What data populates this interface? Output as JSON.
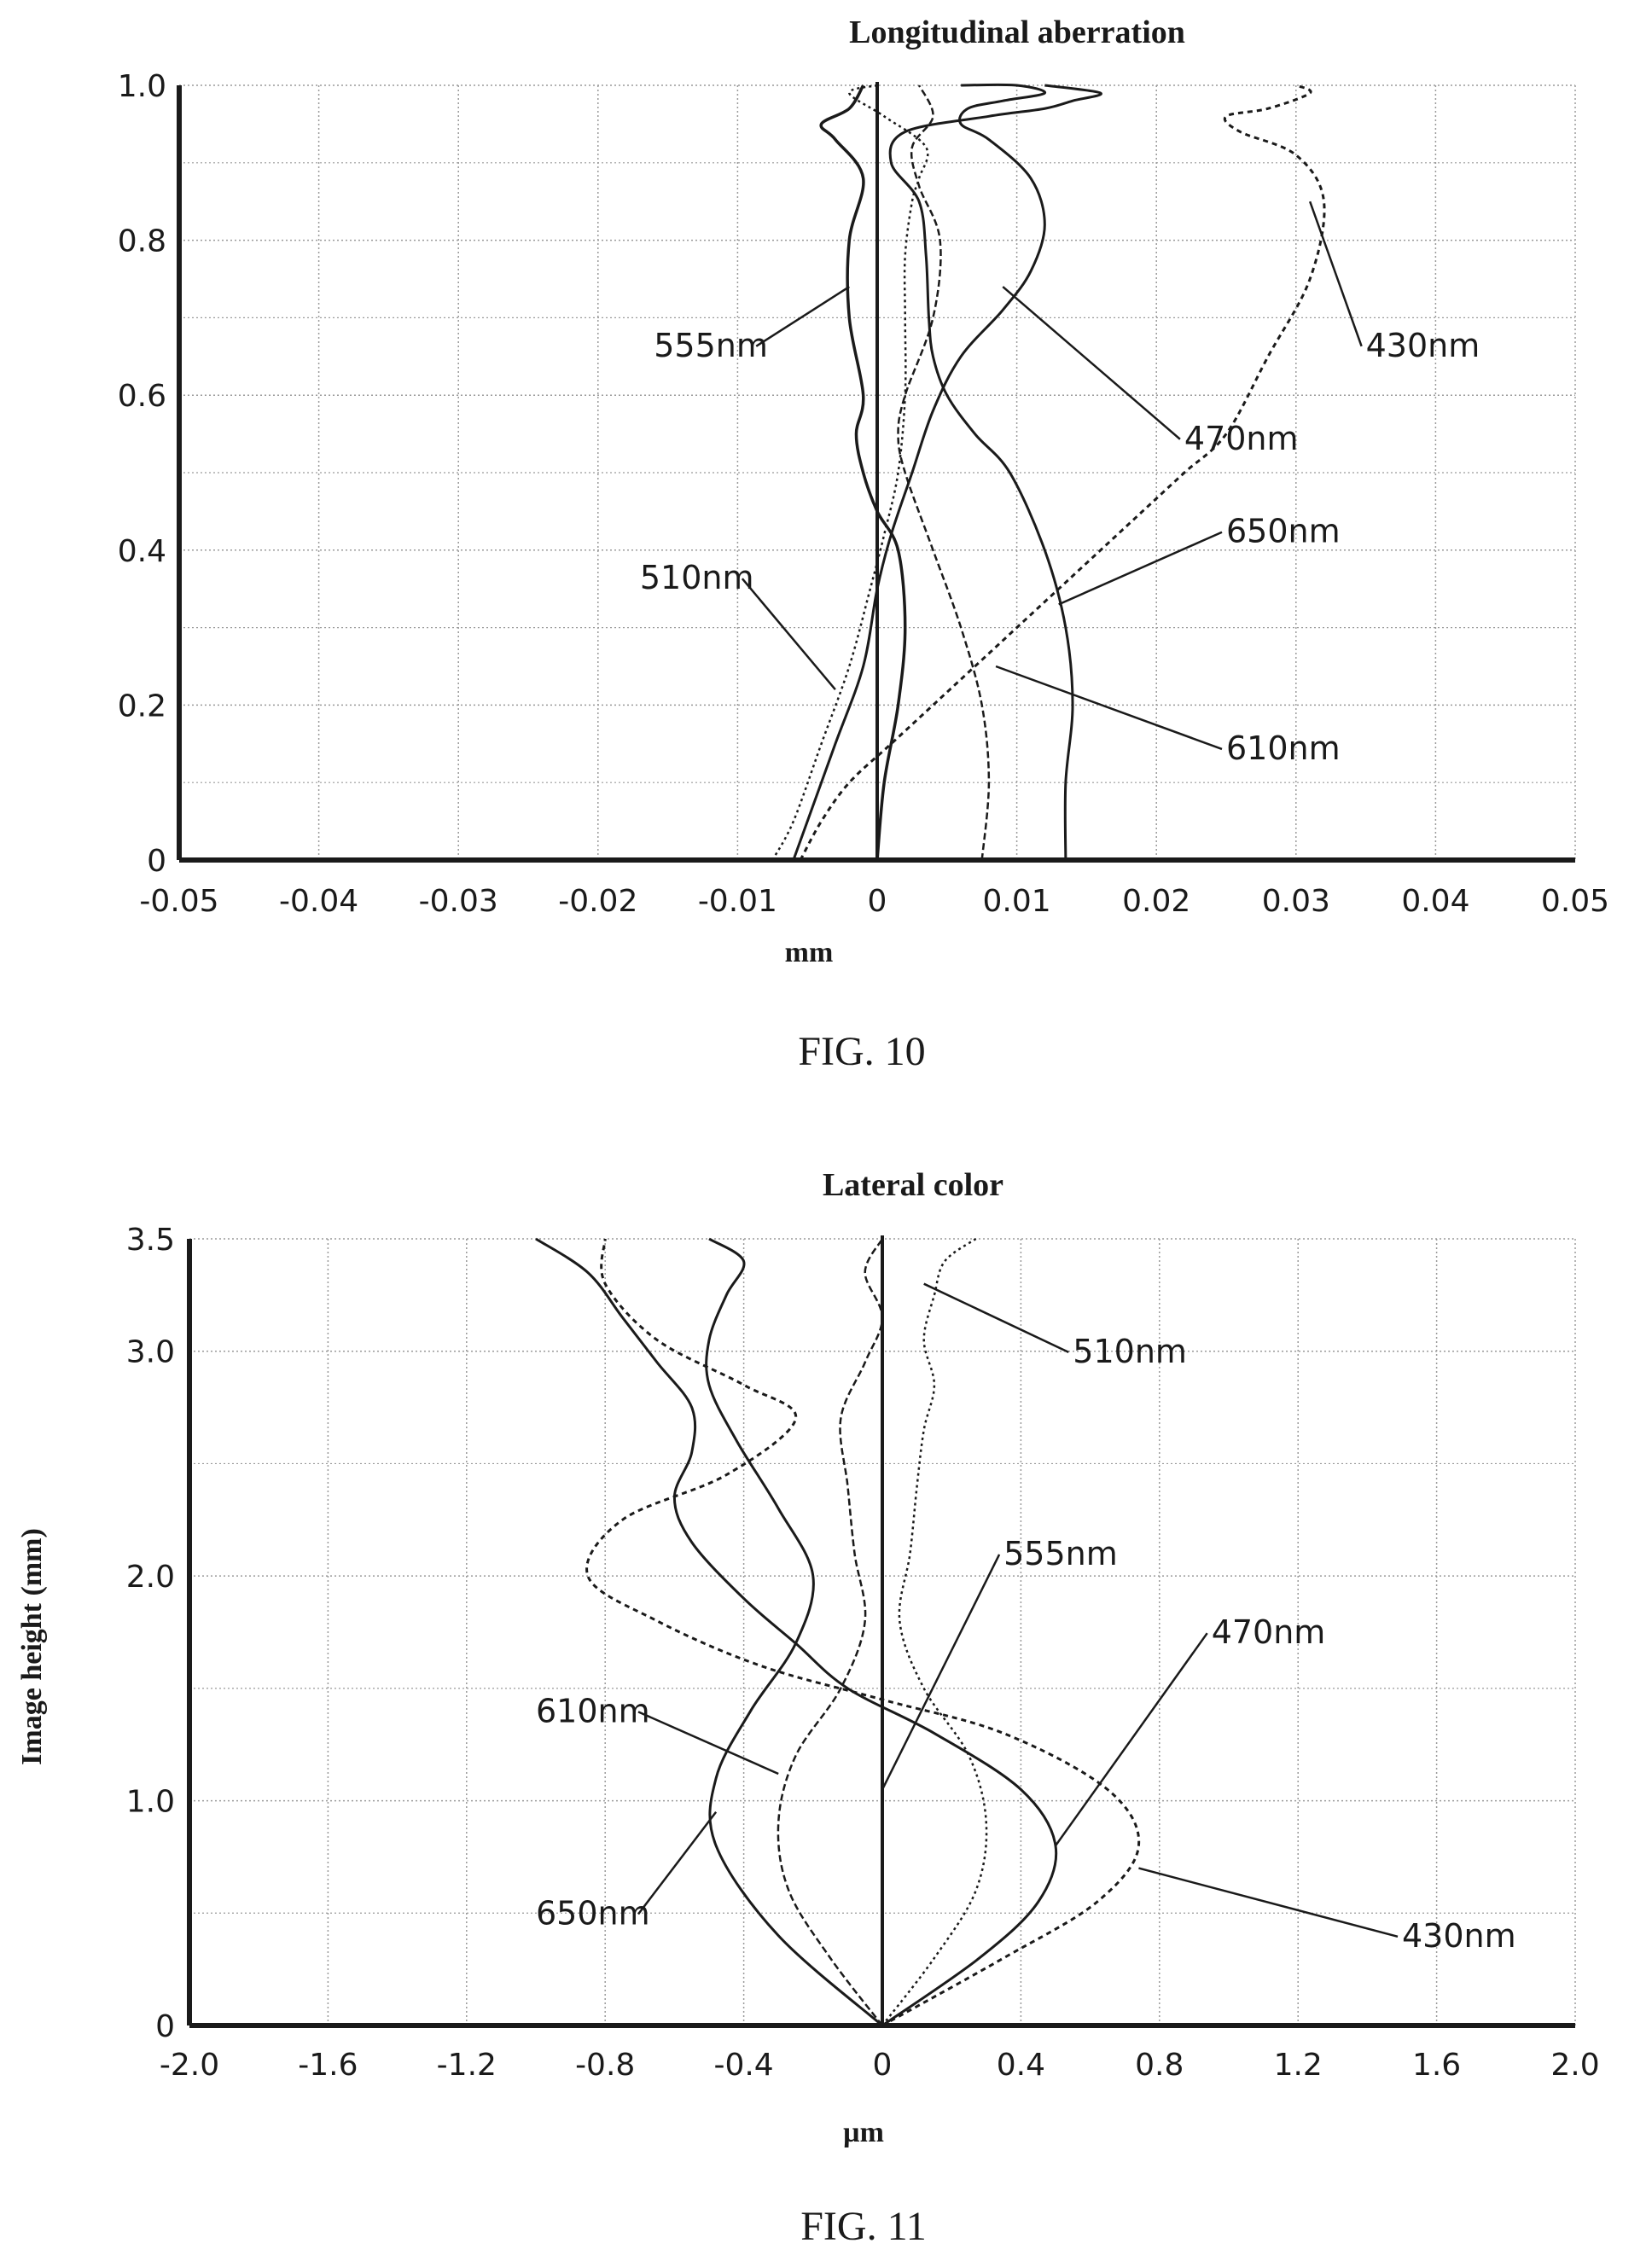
{
  "colors": {
    "ink": "#1a1a1a",
    "grid": "#9a9a9a",
    "background": "#ffffff"
  },
  "chart_data": [
    {
      "type": "line",
      "title": "Longitudinal aberration",
      "xlabel": "mm",
      "ylabel": "",
      "xlim": [
        -0.05,
        0.05
      ],
      "ylim": [
        0,
        1.0
      ],
      "xticks": [
        "-0.05",
        "-0.04",
        "-0.03",
        "-0.02",
        "-0.01",
        "0",
        "0.01",
        "0.02",
        "0.03",
        "0.04",
        "0.05"
      ],
      "yticks": [
        "0",
        "0.2",
        "0.4",
        "0.6",
        "0.8",
        "1.0"
      ],
      "grid": true,
      "caption": "FIG. 10",
      "series": [
        {
          "name": "430nm",
          "x": [
            -0.0055,
            -0.004,
            -0.002,
            0.001,
            0.004,
            0.007,
            0.01,
            0.013,
            0.016,
            0.019,
            0.022,
            0.025,
            0.028,
            0.031,
            0.032,
            0.03,
            0.026,
            0.025,
            0.028,
            0.031,
            0.03
          ],
          "y": [
            0,
            0.05,
            0.1,
            0.15,
            0.2,
            0.25,
            0.3,
            0.35,
            0.4,
            0.45,
            0.5,
            0.55,
            0.65,
            0.75,
            0.85,
            0.91,
            0.94,
            0.96,
            0.97,
            0.99,
            1.0
          ]
        },
        {
          "name": "470nm",
          "x": [
            -0.006,
            -0.005,
            -0.003,
            -0.001,
            0.0,
            0.001,
            0.0025,
            0.004,
            0.006,
            0.009,
            0.011,
            0.012,
            0.011,
            0.008,
            0.006,
            0.0065,
            0.009,
            0.012,
            0.01,
            0.006
          ],
          "y": [
            0,
            0.05,
            0.15,
            0.25,
            0.35,
            0.42,
            0.5,
            0.58,
            0.65,
            0.71,
            0.76,
            0.82,
            0.88,
            0.93,
            0.95,
            0.97,
            0.98,
            0.99,
            1.0,
            1.0
          ]
        },
        {
          "name": "510nm",
          "x": [
            -0.0075,
            -0.006,
            -0.004,
            -0.002,
            -0.0005,
            0.0005,
            0.0015,
            0.002,
            0.002,
            0.002,
            0.0025,
            0.003,
            0.0035,
            0.0005,
            -0.002,
            0.0
          ],
          "y": [
            0,
            0.05,
            0.15,
            0.25,
            0.35,
            0.42,
            0.5,
            0.6,
            0.7,
            0.78,
            0.85,
            0.88,
            0.92,
            0.96,
            0.99,
            1.0
          ]
        },
        {
          "name": "555nm",
          "x": [
            0.0,
            0.0005,
            0.0015,
            0.002,
            0.0015,
            0.0,
            -0.001,
            -0.0015,
            -0.001,
            -0.002,
            -0.002,
            -0.001,
            -0.003,
            -0.004,
            -0.002,
            -0.001
          ],
          "y": [
            0,
            0.1,
            0.2,
            0.3,
            0.4,
            0.45,
            0.5,
            0.55,
            0.6,
            0.7,
            0.8,
            0.88,
            0.93,
            0.95,
            0.97,
            1.0
          ]
        },
        {
          "name": "610nm",
          "x": [
            0.0075,
            0.008,
            0.0075,
            0.006,
            0.004,
            0.002,
            0.0015,
            0.002,
            0.004,
            0.0045,
            0.003,
            0.0025,
            0.004,
            0.003
          ],
          "y": [
            0,
            0.1,
            0.2,
            0.3,
            0.4,
            0.5,
            0.55,
            0.6,
            0.7,
            0.8,
            0.87,
            0.92,
            0.96,
            1.0
          ]
        },
        {
          "name": "650nm",
          "x": [
            0.0135,
            0.0135,
            0.014,
            0.0135,
            0.012,
            0.0095,
            0.007,
            0.005,
            0.004,
            0.0037,
            0.0035,
            0.003,
            0.001,
            0.002,
            0.008,
            0.012,
            0.014,
            0.016,
            0.012
          ],
          "y": [
            0,
            0.1,
            0.2,
            0.3,
            0.4,
            0.5,
            0.55,
            0.6,
            0.65,
            0.7,
            0.78,
            0.85,
            0.9,
            0.94,
            0.96,
            0.97,
            0.98,
            0.99,
            1.0
          ]
        }
      ],
      "annotations": [
        {
          "text": "430nm",
          "x": 0.035,
          "y": 0.65,
          "point_x": 0.031,
          "point_y": 0.85
        },
        {
          "text": "470nm",
          "x": 0.022,
          "y": 0.53,
          "point_x": 0.009,
          "point_y": 0.74
        },
        {
          "text": "555nm",
          "x": -0.016,
          "y": 0.65,
          "point_x": -0.002,
          "point_y": 0.74
        },
        {
          "text": "650nm",
          "x": 0.025,
          "y": 0.41,
          "point_x": 0.013,
          "point_y": 0.33
        },
        {
          "text": "510nm",
          "x": -0.017,
          "y": 0.35,
          "point_x": -0.003,
          "point_y": 0.22
        },
        {
          "text": "610nm",
          "x": 0.025,
          "y": 0.13,
          "point_x": 0.0085,
          "point_y": 0.25
        }
      ]
    },
    {
      "type": "line",
      "title": "Lateral color",
      "xlabel": "µm",
      "ylabel": "Image height (mm)",
      "xlim": [
        -2.0,
        2.0
      ],
      "ylim": [
        0,
        3.5
      ],
      "xticks": [
        "-2.0",
        "-1.6",
        "-1.2",
        "-0.8",
        "-0.4",
        "0",
        "0.4",
        "0.8",
        "1.2",
        "1.6",
        "2.0"
      ],
      "yticks": [
        "0",
        "1.0",
        "2.0",
        "3.0",
        "3.5"
      ],
      "grid": true,
      "caption": "FIG. 11",
      "series": [
        {
          "name": "430nm",
          "x": [
            0.0,
            0.35,
            0.62,
            0.74,
            0.65,
            0.35,
            0.0,
            -0.35,
            -0.65,
            -0.85,
            -0.75,
            -0.45,
            -0.25,
            -0.4,
            -0.65,
            -0.8,
            -0.8
          ],
          "y": [
            0,
            0.3,
            0.55,
            0.8,
            1.05,
            1.3,
            1.45,
            1.6,
            1.8,
            2.0,
            2.25,
            2.45,
            2.7,
            2.85,
            3.05,
            3.3,
            3.5
          ]
        },
        {
          "name": "470nm",
          "x": [
            0.0,
            0.28,
            0.45,
            0.5,
            0.4,
            0.15,
            -0.1,
            -0.25,
            -0.4,
            -0.55,
            -0.6,
            -0.55,
            -0.55,
            -0.65,
            -0.75,
            -0.85,
            -1.0
          ],
          "y": [
            0,
            0.3,
            0.55,
            0.8,
            1.05,
            1.3,
            1.5,
            1.7,
            1.9,
            2.15,
            2.35,
            2.55,
            2.75,
            2.95,
            3.15,
            3.35,
            3.5
          ]
        },
        {
          "name": "510nm",
          "x": [
            0.0,
            0.15,
            0.27,
            0.3,
            0.25,
            0.12,
            0.05,
            0.08,
            0.1,
            0.12,
            0.15,
            0.12,
            0.15,
            0.18,
            0.27
          ],
          "y": [
            0,
            0.3,
            0.6,
            0.9,
            1.2,
            1.5,
            1.8,
            2.1,
            2.4,
            2.65,
            2.85,
            3.05,
            3.25,
            3.4,
            3.5
          ]
        },
        {
          "name": "555nm",
          "x": [
            0.0,
            0.0,
            0.0,
            0.0,
            0.0,
            0.0,
            0.0,
            0.0,
            0.0,
            0.0,
            0.0
          ],
          "y": [
            0,
            0.35,
            0.7,
            1.05,
            1.4,
            1.75,
            2.1,
            2.45,
            2.8,
            3.15,
            3.5
          ]
        },
        {
          "name": "610nm",
          "x": [
            0.0,
            -0.15,
            -0.27,
            -0.3,
            -0.25,
            -0.12,
            -0.05,
            -0.08,
            -0.1,
            -0.12,
            -0.05,
            0.0,
            -0.05,
            0.0
          ],
          "y": [
            0,
            0.3,
            0.6,
            0.9,
            1.2,
            1.5,
            1.8,
            2.1,
            2.4,
            2.7,
            2.95,
            3.15,
            3.35,
            3.5
          ]
        },
        {
          "name": "650nm",
          "x": [
            0.0,
            -0.3,
            -0.48,
            -0.48,
            -0.38,
            -0.25,
            -0.2,
            -0.3,
            -0.42,
            -0.5,
            -0.5,
            -0.45,
            -0.4,
            -0.5
          ],
          "y": [
            0,
            0.4,
            0.8,
            1.1,
            1.4,
            1.7,
            2.0,
            2.3,
            2.6,
            2.85,
            3.05,
            3.25,
            3.4,
            3.5
          ]
        }
      ],
      "annotations": [
        {
          "text": "510nm",
          "x": 0.55,
          "y": 2.95,
          "point_x": 0.12,
          "point_y": 3.3
        },
        {
          "text": "555nm",
          "x": 0.35,
          "y": 2.05,
          "point_x": 0.0,
          "point_y": 1.05
        },
        {
          "text": "470nm",
          "x": 0.95,
          "y": 1.7,
          "point_x": 0.5,
          "point_y": 0.8
        },
        {
          "text": "610nm",
          "x": -1.0,
          "y": 1.35,
          "point_x": -0.3,
          "point_y": 1.12
        },
        {
          "text": "650nm",
          "x": -1.0,
          "y": 0.45,
          "point_x": -0.48,
          "point_y": 0.95
        },
        {
          "text": "430nm",
          "x": 1.5,
          "y": 0.35,
          "point_x": 0.74,
          "point_y": 0.7
        }
      ]
    }
  ]
}
